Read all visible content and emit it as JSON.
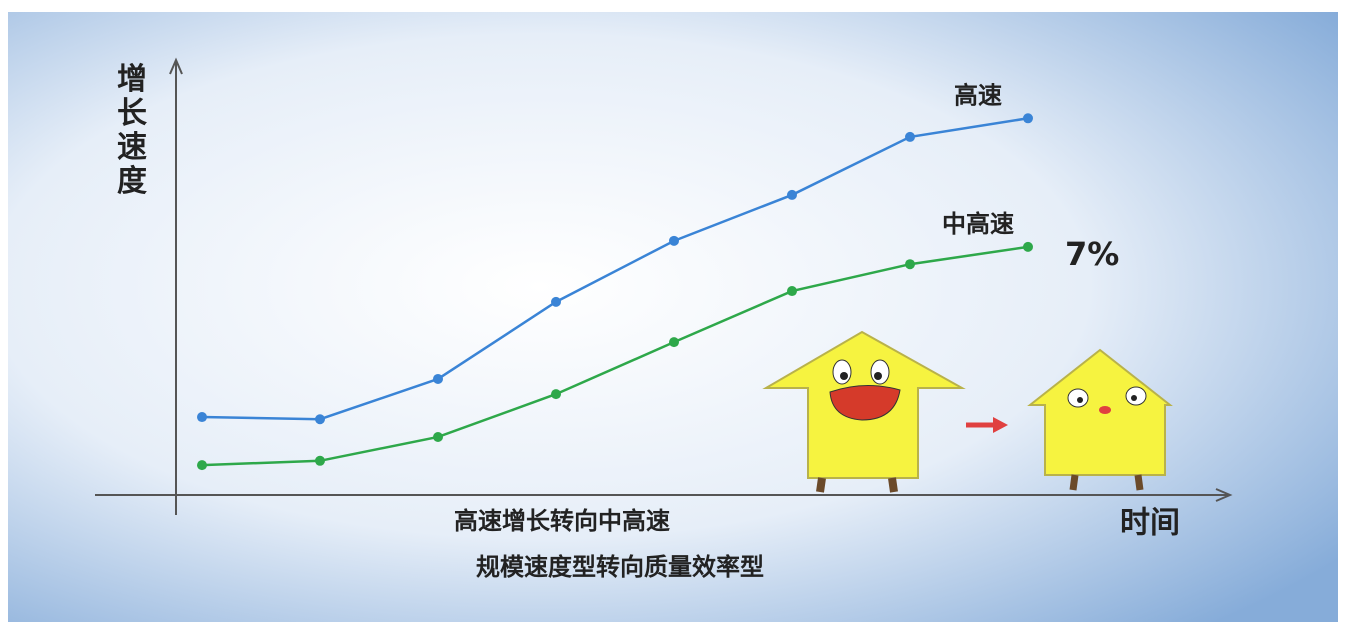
{
  "chart_data": {
    "type": "line",
    "y_label": "增长速度",
    "x_label": "时间",
    "categories": [
      null,
      null,
      null,
      null,
      null,
      null,
      null,
      null
    ],
    "series": [
      {
        "name": "高速",
        "color": "#3a84d6",
        "values": [
          18,
          17.5,
          26.8,
          44.6,
          58.7,
          69.3,
          82.7,
          87
        ]
      },
      {
        "name": "中高速",
        "color": "#2ea84a",
        "values": [
          6.9,
          7.9,
          13.4,
          23.3,
          35.3,
          47.1,
          53.3,
          57.3
        ]
      }
    ],
    "ylim": [
      0,
      100
    ],
    "annotation": "7%",
    "captions": [
      "高速增长转向中高速",
      "规模速度型转向质量效率型"
    ]
  }
}
